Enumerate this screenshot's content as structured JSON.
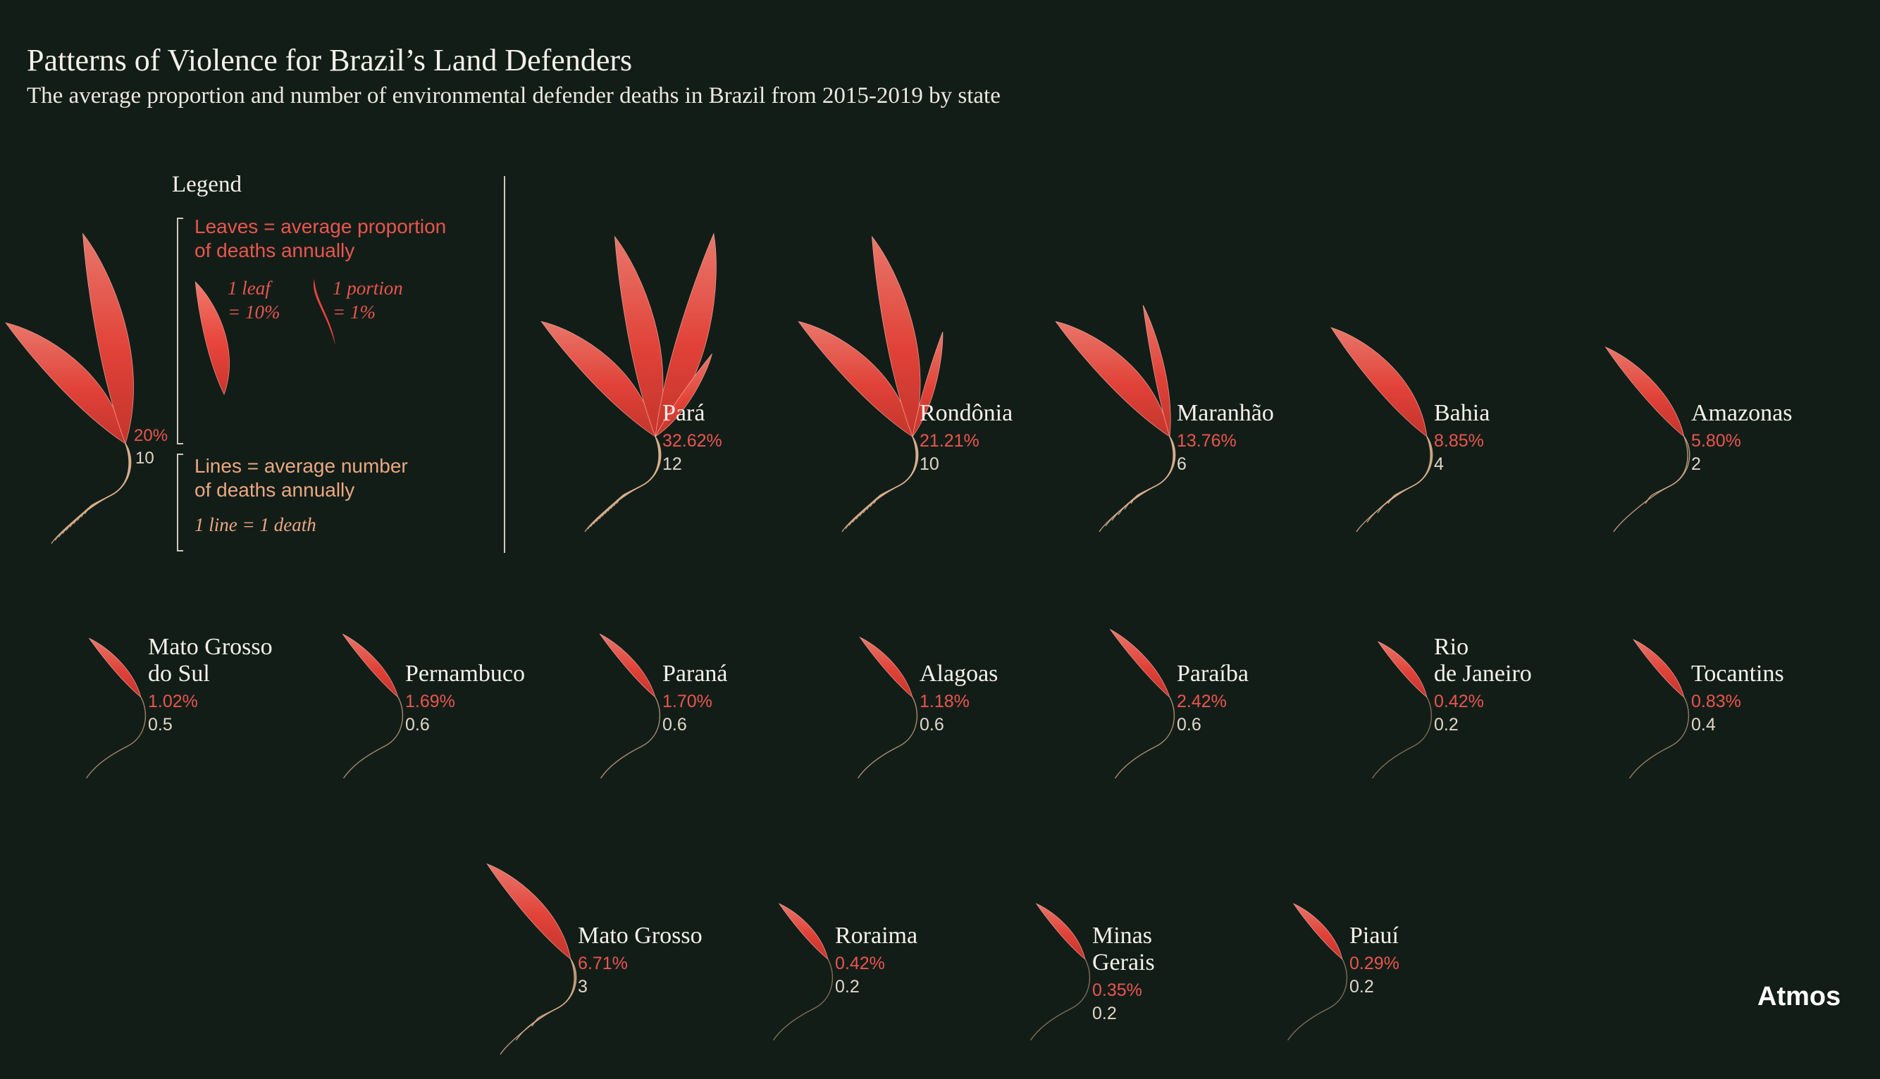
{
  "title": "Patterns of Violence for Brazil’s Land Defenders",
  "subtitle": "The average proportion and number of environmental defender deaths in Brazil from 2015-2019 by state",
  "brand": "Atmos",
  "colors": {
    "background": "#131d18",
    "leaf": "#e8443a",
    "leaf_light": "#f07a6e",
    "line": "#d9b08c",
    "pct_text": "#e8564e",
    "count_text": "#e0d6c8"
  },
  "legend": {
    "heading": "Legend",
    "leaves_text": "Leaves = average proportion\nof deaths annually",
    "leaf_key": "1 leaf\n= 10%",
    "portion_key": "1 portion\n= 1%",
    "lines_text": "Lines = average number\nof deaths annually",
    "line_key": "1 line = 1 death",
    "example_pct": "20%",
    "example_count": "10"
  },
  "chart_data": {
    "type": "pictogram",
    "title": "Patterns of Violence for Brazil’s Land Defenders",
    "subtitle": "The average proportion and number of environmental defender deaths in Brazil from 2015-2019 by state",
    "encoding": {
      "leaves": "average proportion of deaths annually (1 leaf = 10%, 1 portion = 1%)",
      "lines": "average number of deaths annually (1 line = 1 death)"
    },
    "states": [
      {
        "name": "Pará",
        "pct": 32.62,
        "pct_label": "32.62%",
        "deaths": 12,
        "deaths_label": "12"
      },
      {
        "name": "Rondônia",
        "pct": 21.21,
        "pct_label": "21.21%",
        "deaths": 10,
        "deaths_label": "10"
      },
      {
        "name": "Maranhão",
        "pct": 13.76,
        "pct_label": "13.76%",
        "deaths": 6,
        "deaths_label": "6"
      },
      {
        "name": "Bahia",
        "pct": 8.85,
        "pct_label": "8.85%",
        "deaths": 4,
        "deaths_label": "4"
      },
      {
        "name": "Amazonas",
        "pct": 5.8,
        "pct_label": "5.80%",
        "deaths": 2,
        "deaths_label": "2"
      },
      {
        "name": "Mato Grosso\ndo Sul",
        "pct": 1.02,
        "pct_label": "1.02%",
        "deaths": 0.5,
        "deaths_label": "0.5"
      },
      {
        "name": "Pernambuco",
        "pct": 1.69,
        "pct_label": "1.69%",
        "deaths": 0.6,
        "deaths_label": "0.6"
      },
      {
        "name": "Paraná",
        "pct": 1.7,
        "pct_label": "1.70%",
        "deaths": 0.6,
        "deaths_label": "0.6"
      },
      {
        "name": "Alagoas",
        "pct": 1.18,
        "pct_label": "1.18%",
        "deaths": 0.6,
        "deaths_label": "0.6"
      },
      {
        "name": "Paraíba",
        "pct": 2.42,
        "pct_label": "2.42%",
        "deaths": 0.6,
        "deaths_label": "0.6"
      },
      {
        "name": "Rio\nde Janeiro",
        "pct": 0.42,
        "pct_label": "0.42%",
        "deaths": 0.2,
        "deaths_label": "0.2"
      },
      {
        "name": "Tocantins",
        "pct": 0.83,
        "pct_label": "0.83%",
        "deaths": 0.4,
        "deaths_label": "0.4"
      },
      {
        "name": "Mato Grosso",
        "pct": 6.71,
        "pct_label": "6.71%",
        "deaths": 3,
        "deaths_label": "3"
      },
      {
        "name": "Roraima",
        "pct": 0.42,
        "pct_label": "0.42%",
        "deaths": 0.2,
        "deaths_label": "0.2"
      },
      {
        "name": "Minas Gerais",
        "pct": 0.35,
        "pct_label": "0.35%",
        "deaths": 0.2,
        "deaths_label": "0.2"
      },
      {
        "name": "Piauí",
        "pct": 0.29,
        "pct_label": "0.29%",
        "deaths": 0.2,
        "deaths_label": "0.2"
      }
    ]
  }
}
